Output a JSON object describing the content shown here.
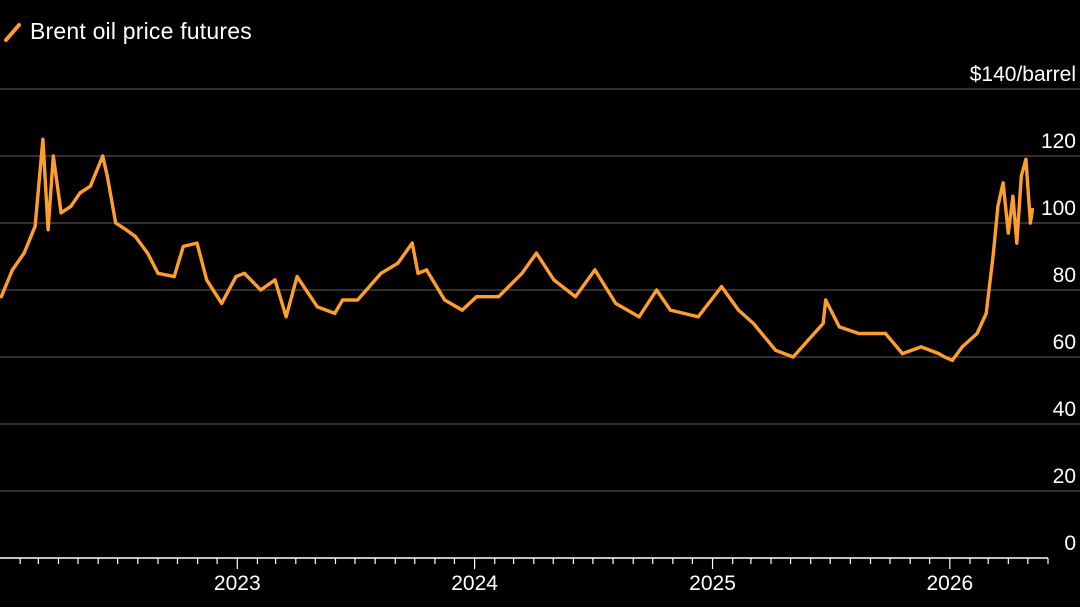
{
  "legend": {
    "label": "Brent oil price futures"
  },
  "colors": {
    "line": "#ff9e2c",
    "grid": "#4d4d4d",
    "axis": "#ffffff",
    "background": "#000000"
  },
  "chart_data": {
    "type": "line",
    "title": "",
    "series": [
      {
        "name": "Brent oil price futures",
        "x": [
          "2022-01-03",
          "2022-01-20",
          "2022-02-07",
          "2022-02-24",
          "2022-03-08",
          "2022-03-16",
          "2022-03-24",
          "2022-04-05",
          "2022-04-20",
          "2022-05-04",
          "2022-05-20",
          "2022-06-08",
          "2022-06-15",
          "2022-06-28",
          "2022-07-14",
          "2022-07-28",
          "2022-08-16",
          "2022-09-01",
          "2022-09-26",
          "2022-10-10",
          "2022-10-31",
          "2022-11-15",
          "2022-12-08",
          "2022-12-30",
          "2023-01-12",
          "2023-02-06",
          "2023-02-28",
          "2023-03-17",
          "2023-04-03",
          "2023-05-04",
          "2023-05-31",
          "2023-06-12",
          "2023-07-05",
          "2023-08-10",
          "2023-09-05",
          "2023-09-27",
          "2023-10-06",
          "2023-10-19",
          "2023-11-16",
          "2023-12-13",
          "2024-01-04",
          "2024-02-07",
          "2024-03-14",
          "2024-04-05",
          "2024-05-02",
          "2024-06-04",
          "2024-07-04",
          "2024-08-05",
          "2024-09-10",
          "2024-10-07",
          "2024-10-28",
          "2024-11-18",
          "2024-12-10",
          "2025-01-15",
          "2025-02-10",
          "2025-03-05",
          "2025-04-08",
          "2025-05-05",
          "2025-05-28",
          "2025-06-20",
          "2025-06-24",
          "2025-07-15",
          "2025-08-14",
          "2025-09-24",
          "2025-10-20",
          "2025-11-18",
          "2025-12-15",
          "2025-12-24",
          "2026-01-05",
          "2026-01-20",
          "2026-02-12",
          "2026-02-26",
          "2026-03-09",
          "2026-03-16",
          "2026-03-24",
          "2026-04-01",
          "2026-04-08",
          "2026-04-14",
          "2026-04-21",
          "2026-04-28",
          "2026-05-05",
          "2026-05-08"
        ],
        "values": [
          78,
          86,
          91,
          99,
          125,
          98,
          120,
          103,
          105,
          109,
          111,
          120,
          114,
          100,
          98,
          96,
          91,
          85,
          84,
          93,
          94,
          83,
          76,
          84,
          85,
          80,
          83,
          72,
          84,
          75,
          73,
          77,
          77,
          85,
          88,
          94,
          85,
          86,
          77,
          74,
          78,
          78,
          85,
          91,
          83,
          78,
          86,
          76,
          72,
          80,
          74,
          73,
          72,
          81,
          74,
          70,
          62,
          60,
          65,
          70,
          77,
          69,
          67,
          67,
          61,
          63,
          61,
          60,
          59,
          63,
          67,
          73,
          91,
          105,
          112,
          97,
          108,
          94,
          114,
          119,
          100,
          104
        ]
      }
    ],
    "xlim": [
      "2022-01-01",
      "2026-06-01"
    ],
    "x_ticks": [
      "2023",
      "2024",
      "2025",
      "2026"
    ],
    "ylim": [
      0,
      140
    ],
    "y_ticks": [
      "$140/barrel",
      "120",
      "100",
      "80",
      "60",
      "40",
      "20",
      "0"
    ],
    "grid": true,
    "legend_position": "top-left"
  }
}
